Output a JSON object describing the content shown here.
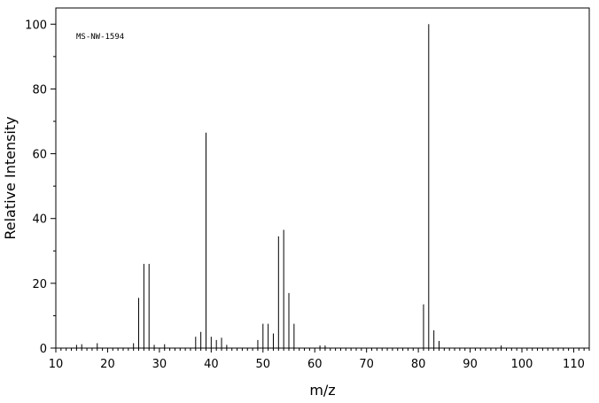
{
  "chart_data": {
    "type": "bar",
    "subtype": "mass-spectrum-stick",
    "annotation": "MS-NW-1594",
    "xlabel": "m/z",
    "ylabel": "Relative Intensity",
    "xlim": [
      10,
      113
    ],
    "ylim": [
      0,
      105
    ],
    "xticks": [
      10,
      20,
      30,
      40,
      50,
      60,
      70,
      80,
      90,
      100,
      110
    ],
    "yticks": [
      0,
      20,
      40,
      60,
      80,
      100
    ],
    "grid": false,
    "legend": "none",
    "peaks": [
      {
        "mz": 14,
        "intensity": 1.0
      },
      {
        "mz": 15,
        "intensity": 1.2
      },
      {
        "mz": 18,
        "intensity": 1.5
      },
      {
        "mz": 25,
        "intensity": 1.5
      },
      {
        "mz": 26,
        "intensity": 15.5
      },
      {
        "mz": 27,
        "intensity": 26
      },
      {
        "mz": 28,
        "intensity": 26
      },
      {
        "mz": 29,
        "intensity": 1.0
      },
      {
        "mz": 31,
        "intensity": 1.2
      },
      {
        "mz": 37,
        "intensity": 3.5
      },
      {
        "mz": 38,
        "intensity": 5
      },
      {
        "mz": 39,
        "intensity": 66.5
      },
      {
        "mz": 40,
        "intensity": 3.5
      },
      {
        "mz": 41,
        "intensity": 2.5
      },
      {
        "mz": 42,
        "intensity": 3.2
      },
      {
        "mz": 43,
        "intensity": 1.0
      },
      {
        "mz": 49,
        "intensity": 2.5
      },
      {
        "mz": 50,
        "intensity": 7.5
      },
      {
        "mz": 51,
        "intensity": 7.5
      },
      {
        "mz": 52,
        "intensity": 4.5
      },
      {
        "mz": 53,
        "intensity": 34.5
      },
      {
        "mz": 54,
        "intensity": 36.5
      },
      {
        "mz": 55,
        "intensity": 17
      },
      {
        "mz": 56,
        "intensity": 7.5
      },
      {
        "mz": 61,
        "intensity": 0.8
      },
      {
        "mz": 62,
        "intensity": 0.8
      },
      {
        "mz": 81,
        "intensity": 13.5
      },
      {
        "mz": 82,
        "intensity": 100
      },
      {
        "mz": 83,
        "intensity": 5.5
      },
      {
        "mz": 84,
        "intensity": 2.2
      },
      {
        "mz": 96,
        "intensity": 0.8
      }
    ]
  }
}
